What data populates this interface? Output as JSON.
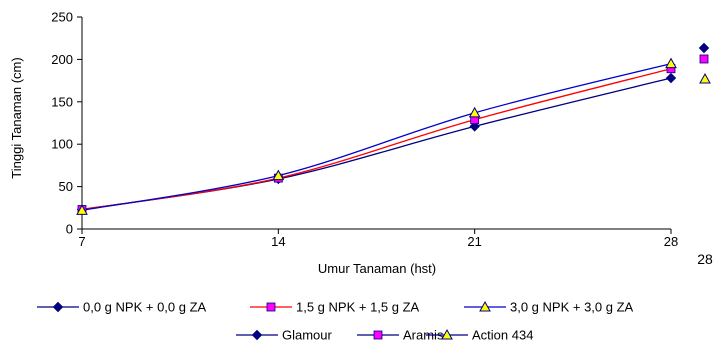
{
  "chart_data": {
    "type": "line",
    "title": "",
    "xlabel": "Umur Tanaman (hst)",
    "ylabel": "Tinggi Tanaman (cm)",
    "x": [
      7,
      14,
      21,
      28
    ],
    "xlim": [
      7,
      28
    ],
    "ylim": [
      0,
      250
    ],
    "y_ticks": [
      0,
      50,
      100,
      150,
      200,
      250
    ],
    "x_tick_labels": [
      "7",
      "14",
      "21",
      "28"
    ],
    "grid": false,
    "series": [
      {
        "name": "0,0 g NPK + 0,0 g ZA",
        "values": [
          23,
          59,
          121,
          178
        ],
        "color": "#000080",
        "marker": "diamond",
        "marker_fill": "#000080"
      },
      {
        "name": "1,5 g NPK + 1,5 g ZA",
        "values": [
          23,
          60,
          129,
          189
        ],
        "color": "#FF0000",
        "marker": "square",
        "marker_fill": "#FF00FF"
      },
      {
        "name": "3,0 g NPK + 3,0 g ZA",
        "values": [
          22,
          63,
          137,
          195
        ],
        "color": "#0000CC",
        "marker": "triangle",
        "marker_fill": "#FFFF00"
      }
    ],
    "legend_secondary": [
      {
        "name": "Glamour",
        "marker": "diamond",
        "color": "#000080",
        "marker_fill": "#000080"
      },
      {
        "name": "Aramis",
        "marker": "square",
        "color": "#000080",
        "marker_fill": "#FF00FF"
      },
      {
        "name": "Action 434",
        "marker": "triangle",
        "color": "#000080",
        "marker_fill": "#FFFF00"
      }
    ],
    "stray_label": "28",
    "legend_position": "bottom"
  }
}
